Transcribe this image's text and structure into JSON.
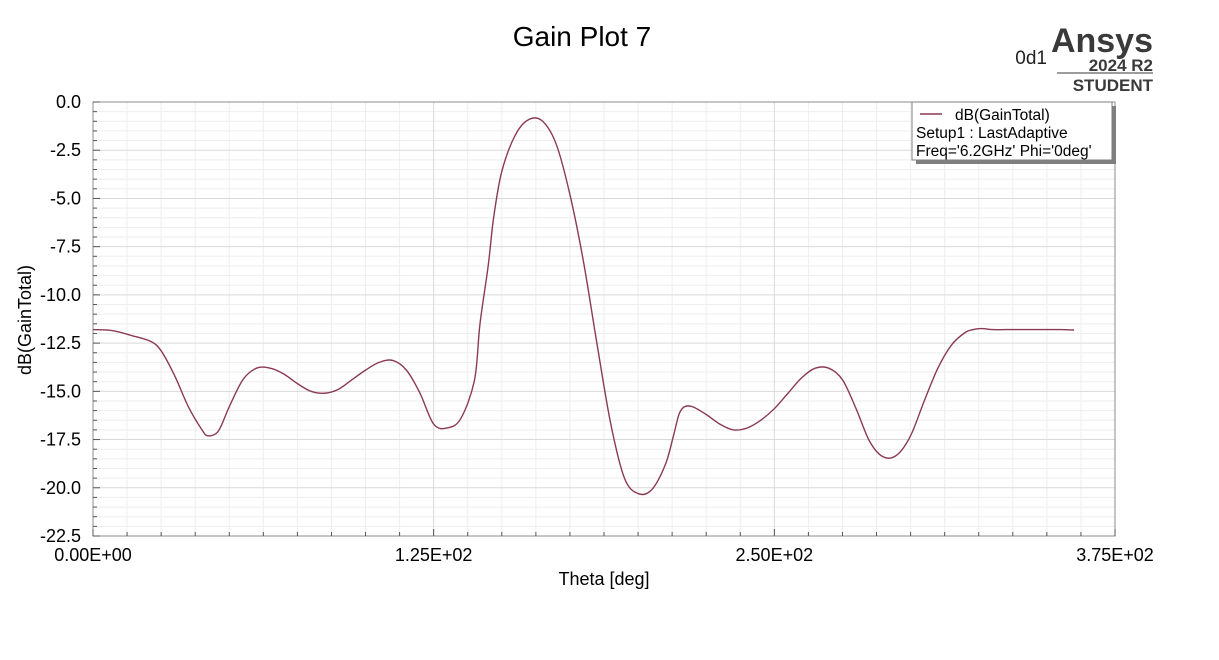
{
  "chart_data": {
    "type": "line",
    "title": "Gain Plot 7",
    "xlabel": "Theta [deg]",
    "ylabel": "dB(GainTotal)",
    "xlim": [
      0,
      375
    ],
    "ylim": [
      -22.5,
      0
    ],
    "x_ticks": [
      "0.00E+00",
      "1.25E+02",
      "2.50E+02",
      "3.75E+02"
    ],
    "y_ticks": [
      "0.0",
      "-2.5",
      "-5.0",
      "-7.5",
      "-10.0",
      "-12.5",
      "-15.0",
      "-17.5",
      "-20.0",
      "-22.5"
    ],
    "grid": true,
    "legend_position": "top-right",
    "series": [
      {
        "name": "dB(GainTotal)",
        "color": "#8b3a52",
        "x": [
          0,
          7,
          14,
          21,
          25,
          30,
          35,
          40,
          42,
          45,
          47,
          50,
          55,
          60,
          65,
          70,
          75,
          80,
          85,
          90,
          95,
          100,
          105,
          110,
          115,
          120,
          125,
          130,
          135,
          140,
          142,
          145,
          147,
          150,
          155,
          160,
          165,
          170,
          175,
          180,
          185,
          190,
          195,
          200,
          205,
          210,
          213,
          215,
          217,
          220,
          225,
          230,
          235,
          240,
          245,
          250,
          255,
          260,
          265,
          270,
          275,
          280,
          285,
          290,
          295,
          300,
          305,
          310,
          315,
          320,
          323,
          325,
          327,
          330,
          335,
          340,
          345,
          350,
          355,
          360
        ],
        "y": [
          -11.8,
          -11.85,
          -12.1,
          -12.4,
          -12.9,
          -14.2,
          -15.8,
          -17.0,
          -17.3,
          -17.2,
          -16.8,
          -15.8,
          -14.4,
          -13.8,
          -13.8,
          -14.1,
          -14.6,
          -15.0,
          -15.1,
          -14.9,
          -14.4,
          -13.9,
          -13.5,
          -13.4,
          -13.9,
          -15.1,
          -16.7,
          -16.9,
          -16.4,
          -14.4,
          -11.5,
          -8.5,
          -6.0,
          -3.6,
          -1.7,
          -0.9,
          -1.0,
          -2.2,
          -4.8,
          -8.3,
          -12.6,
          -16.7,
          -19.5,
          -20.3,
          -20.1,
          -18.8,
          -17.3,
          -16.2,
          -15.8,
          -15.8,
          -16.2,
          -16.7,
          -17.0,
          -16.9,
          -16.5,
          -15.9,
          -15.1,
          -14.3,
          -13.8,
          -13.8,
          -14.4,
          -15.9,
          -17.6,
          -18.4,
          -18.3,
          -17.3,
          -15.5,
          -13.8,
          -12.6,
          -11.95,
          -11.8,
          -11.75,
          -11.75,
          -11.8,
          -11.8,
          -11.8,
          -11.8,
          -11.8,
          -11.8,
          -11.82
        ]
      }
    ]
  },
  "logo": {
    "brand": "Ansys",
    "version": "2024 R2",
    "edition": "STUDENT",
    "id_label": "0d1"
  },
  "legend": {
    "line1": "dB(GainTotal)",
    "line2": "Setup1 : LastAdaptive",
    "line3": "Freq='6.2GHz' Phi='0deg'"
  }
}
